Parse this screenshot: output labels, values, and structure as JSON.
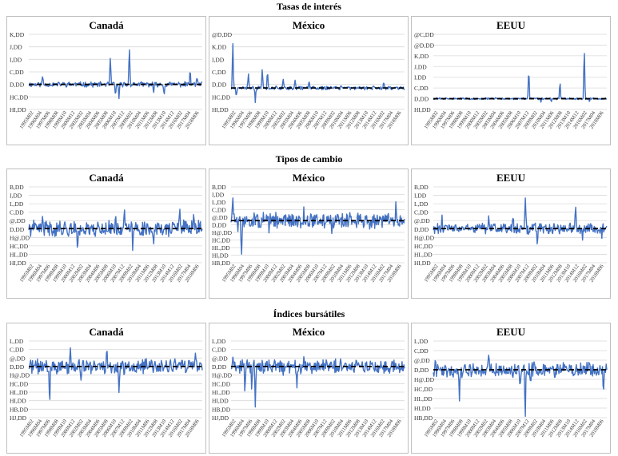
{
  "sections": [
    {
      "title": "Tasas de interés"
    },
    {
      "title": "Tipos de cambio"
    },
    {
      "title": "Índices bursátiles"
    }
  ],
  "x_tick_labels": [
    "1995M02",
    "1996M04",
    "1997M06",
    "1998M08",
    "1999M10",
    "2000M12",
    "2002M02",
    "2003M04",
    "2004M06",
    "2005M08",
    "2006M10",
    "2007M12",
    "2009M02",
    "2010M04",
    "2011M06",
    "2012M08",
    "2013M10",
    "2014M12",
    "2016M02",
    "2017M04",
    "2018M06"
  ],
  "colors": {
    "series": "#4472c4",
    "trend": "#000000",
    "grid": "#d9d9d9",
    "border": "#bfbfbf"
  },
  "chart_data": [
    {
      "type": "line",
      "section": 0,
      "title": "Canadá",
      "y_tick_labels": [
        "K,DD",
        "J,DD",
        "I,DD",
        "C,DD",
        "D,DD",
        "HC,DD",
        "HI,DD"
      ],
      "ylim": [
        -4,
        8
      ],
      "seed": 11,
      "base_amp": 0.35,
      "spikes": [
        [
          0.08,
          1.4
        ],
        [
          0.47,
          4.6
        ],
        [
          0.5,
          -2.0
        ],
        [
          0.52,
          -2.4
        ],
        [
          0.58,
          6.5
        ],
        [
          0.72,
          -1.6
        ],
        [
          0.78,
          -1.9
        ],
        [
          0.93,
          2.3
        ],
        [
          0.97,
          1.3
        ]
      ]
    },
    {
      "type": "line",
      "section": 0,
      "title": "México",
      "y_tick_labels": [
        "@D,DD",
        "K,DD",
        "I,DD",
        "C,DD",
        "D,DD",
        "HC,DD",
        "HI,DD"
      ],
      "ylim": [
        -4,
        10
      ],
      "seed": 21,
      "base_amp": 0.3,
      "spikes": [
        [
          0.01,
          9.5
        ],
        [
          0.03,
          -2.0
        ],
        [
          0.1,
          2.7
        ],
        [
          0.14,
          -2.5
        ],
        [
          0.18,
          4.0
        ],
        [
          0.21,
          3.6
        ],
        [
          0.3,
          2.0
        ],
        [
          0.37,
          1.7
        ],
        [
          0.45,
          1.3
        ],
        [
          0.88,
          1.1
        ]
      ]
    },
    {
      "type": "line",
      "section": 0,
      "title": "EEUU",
      "y_tick_labels": [
        "@C,DD",
        "@D,DD",
        "K,DD",
        "J,DD",
        "I,DD",
        "C,DD",
        "D,DD",
        "HI,DD"
      ],
      "ylim": [
        -2,
        12
      ],
      "seed": 31,
      "base_amp": 0.15,
      "spikes": [
        [
          0.55,
          6.1
        ],
        [
          0.62,
          -0.7
        ],
        [
          0.68,
          -0.7
        ],
        [
          0.73,
          3.4
        ],
        [
          0.87,
          10.2
        ],
        [
          0.9,
          -0.5
        ]
      ]
    },
    {
      "type": "line",
      "section": 1,
      "title": "Canadá",
      "y_tick_labels": [
        "B,DD",
        "I,DD",
        "L,DD",
        "C,DD",
        "@,DD",
        "D,DD",
        "H@,DD",
        "HC,DD",
        "HL,DD",
        "HI,DD"
      ],
      "ylim": [
        -4.5,
        5.5
      ],
      "seed": 41,
      "base_amp": 0.9,
      "spikes": [
        [
          0.08,
          1.5
        ],
        [
          0.28,
          -3.4
        ],
        [
          0.5,
          1.9
        ],
        [
          0.55,
          2.5
        ],
        [
          0.6,
          -2.7
        ],
        [
          0.72,
          -2.2
        ],
        [
          0.87,
          3.8
        ],
        [
          0.95,
          1.9
        ]
      ]
    },
    {
      "type": "line",
      "section": 1,
      "title": "México",
      "y_tick_labels": [
        "B,DD",
        "I,DD",
        "L,DD",
        "C,DD",
        "@,DD",
        "D,DD",
        "H@,DD",
        "HC,DD",
        "HL,DD",
        "HI,DD",
        "HB,DD"
      ],
      "ylim": [
        -5,
        4
      ],
      "seed": 51,
      "base_amp": 0.8,
      "spikes": [
        [
          0.01,
          3.5
        ],
        [
          0.04,
          -1.8
        ],
        [
          0.06,
          -4.4
        ],
        [
          0.22,
          -1.8
        ],
        [
          0.42,
          1.5
        ],
        [
          0.58,
          -1.7
        ],
        [
          0.73,
          1.6
        ],
        [
          0.8,
          -1.3
        ],
        [
          0.95,
          1.9
        ]
      ]
    },
    {
      "type": "line",
      "section": 1,
      "title": "EEUU",
      "y_tick_labels": [
        "B,DD",
        "I,DD",
        "L,DD",
        "C,DD",
        "@,DD",
        "D,DD",
        "H@,DD",
        "HC,DD",
        "HL,DD",
        "HI,DD"
      ],
      "ylim": [
        -4.5,
        5.5
      ],
      "seed": 61,
      "base_amp": 0.6,
      "spikes": [
        [
          0.05,
          1.3
        ],
        [
          0.32,
          1.6
        ],
        [
          0.46,
          1.5
        ],
        [
          0.53,
          4.8
        ],
        [
          0.55,
          -1.4
        ],
        [
          0.6,
          -2.7
        ],
        [
          0.82,
          3.6
        ],
        [
          0.86,
          -1.6
        ],
        [
          0.97,
          -1.3
        ]
      ]
    },
    {
      "type": "line",
      "section": 2,
      "title": "Canadá",
      "y_tick_labels": [
        "L,DD",
        "C,DD",
        "@,DD",
        "D,DD",
        "H@,DD",
        "HC,DD",
        "HL,DD",
        "HI,DD",
        "HB,DD",
        "HJ,DD"
      ],
      "ylim": [
        -6,
        3
      ],
      "seed": 71,
      "base_amp": 0.75,
      "spikes": [
        [
          0.12,
          -5.1
        ],
        [
          0.24,
          1.5
        ],
        [
          0.3,
          -2.0
        ],
        [
          0.45,
          1.6
        ],
        [
          0.52,
          -3.3
        ],
        [
          0.55,
          -1.8
        ],
        [
          0.6,
          -1.5
        ],
        [
          0.96,
          1.4
        ]
      ]
    },
    {
      "type": "line",
      "section": 2,
      "title": "México",
      "y_tick_labels": [
        "L,DD",
        "C,DD",
        "@,DD",
        "D,DD",
        "H@,DD",
        "HC,DD",
        "HL,DD",
        "HI,DD",
        "HB,DD",
        "HJ,DD"
      ],
      "ylim": [
        -6,
        3
      ],
      "seed": 81,
      "base_amp": 0.7,
      "spikes": [
        [
          0.01,
          1.5
        ],
        [
          0.08,
          -2.5
        ],
        [
          0.12,
          -3.0
        ],
        [
          0.14,
          -5.2
        ],
        [
          0.25,
          1.5
        ],
        [
          0.3,
          -1.8
        ],
        [
          0.38,
          -2.2
        ],
        [
          0.42,
          1.1
        ],
        [
          0.63,
          1.5
        ],
        [
          0.98,
          -1.0
        ]
      ]
    },
    {
      "type": "line",
      "section": 2,
      "title": "EEUU",
      "y_tick_labels": [
        "L,DD",
        "C,DD",
        "@,DD",
        "D,DD",
        "H@,DD",
        "HC,DD",
        "HL,DD",
        "HI,DD",
        "HB,DD"
      ],
      "ylim": [
        -5,
        3
      ],
      "seed": 91,
      "base_amp": 0.65,
      "spikes": [
        [
          0.01,
          1.2
        ],
        [
          0.15,
          -3.5
        ],
        [
          0.32,
          1.4
        ],
        [
          0.5,
          -2.6
        ],
        [
          0.53,
          -5.1
        ],
        [
          0.56,
          -1.6
        ],
        [
          0.7,
          -1.4
        ],
        [
          0.9,
          1.3
        ],
        [
          0.98,
          -2.4
        ]
      ]
    }
  ]
}
